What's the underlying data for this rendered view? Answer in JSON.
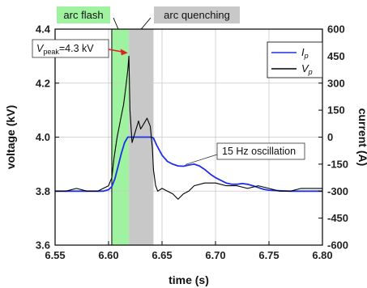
{
  "chart_data": {
    "type": "line",
    "xlabel": "time (s)",
    "ylabel_left": "voltage (kV)",
    "ylabel_right": "current (A)",
    "xlim": [
      6.55,
      6.8
    ],
    "ylim_left": [
      3.6,
      4.4
    ],
    "ylim_right": [
      -600,
      600
    ],
    "x_ticks": [
      "6.55",
      "6.60",
      "6.65",
      "6.70",
      "6.75",
      "6.80"
    ],
    "x_tick_values": [
      6.55,
      6.6,
      6.65,
      6.7,
      6.75,
      6.8
    ],
    "y_left_ticks": [
      "3.6",
      "3.8",
      "4.0",
      "4.2",
      "4.4"
    ],
    "y_left_tick_values": [
      3.6,
      3.8,
      4.0,
      4.2,
      4.4
    ],
    "y_right_ticks": [
      "-600",
      "-450",
      "-300",
      "-150",
      "0",
      "150",
      "300",
      "450",
      "600"
    ],
    "y_right_tick_values": [
      -600,
      -450,
      -300,
      -150,
      0,
      150,
      300,
      450,
      600
    ],
    "grid": true,
    "regions": [
      {
        "label": "arc flash",
        "x_start": 6.603,
        "x_end": 6.619,
        "color": "#9ff29f"
      },
      {
        "label": "arc quenching",
        "x_start": 6.619,
        "x_end": 6.642,
        "color": "#c8c8c8"
      }
    ],
    "vertical_lines": [
      6.603
    ],
    "annotations": [
      {
        "text_main": "V",
        "text_sub": "peak",
        "text_rest": "=4.3 kV",
        "x": 6.618,
        "y": 4.3,
        "arrow_color": "#e02020"
      },
      {
        "text": "15 Hz oscillation",
        "x": 6.667,
        "y": 3.96
      }
    ],
    "legend": {
      "placement": "top-right"
    },
    "series": [
      {
        "name": "I",
        "name_sub": "p",
        "axis": "right",
        "color": "#1f2fe8",
        "x": [
          6.55,
          6.58,
          6.595,
          6.6,
          6.603,
          6.606,
          6.609,
          6.612,
          6.615,
          6.618,
          6.62,
          6.625,
          6.63,
          6.635,
          6.64,
          6.642,
          6.645,
          6.65,
          6.655,
          6.66,
          6.665,
          6.67,
          6.675,
          6.68,
          6.685,
          6.69,
          6.695,
          6.7,
          6.705,
          6.71,
          6.715,
          6.72,
          6.725,
          6.73,
          6.735,
          6.74,
          6.745,
          6.75,
          6.76,
          6.77,
          6.78,
          6.79,
          6.8
        ],
        "y": [
          -300,
          -300,
          -300,
          -292,
          -275,
          -230,
          -160,
          -90,
          -30,
          0,
          0,
          0,
          0,
          0,
          0,
          -5,
          -45,
          -100,
          -135,
          -150,
          -160,
          -162,
          -155,
          -150,
          -160,
          -180,
          -205,
          -225,
          -240,
          -255,
          -262,
          -262,
          -258,
          -262,
          -270,
          -280,
          -290,
          -295,
          -298,
          -300,
          -300,
          -300,
          -300
        ]
      },
      {
        "name": "V",
        "name_sub": "p",
        "axis": "left",
        "color": "#000000",
        "x": [
          6.55,
          6.56,
          6.57,
          6.58,
          6.59,
          6.595,
          6.6,
          6.603,
          6.605,
          6.608,
          6.61,
          6.612,
          6.614,
          6.616,
          6.618,
          6.619,
          6.62,
          6.622,
          6.625,
          6.628,
          6.63,
          6.633,
          6.636,
          6.639,
          6.641,
          6.642,
          6.644,
          6.646,
          6.65,
          6.655,
          6.66,
          6.665,
          6.67,
          6.675,
          6.68,
          6.69,
          6.7,
          6.71,
          6.72,
          6.73,
          6.74,
          6.75,
          6.76,
          6.77,
          6.78,
          6.79,
          6.8
        ],
        "y": [
          3.8,
          3.8,
          3.81,
          3.8,
          3.8,
          3.81,
          3.82,
          3.85,
          3.92,
          4.0,
          4.04,
          4.08,
          4.12,
          4.18,
          4.25,
          4.3,
          4.1,
          3.98,
          4.02,
          4.06,
          4.03,
          4.05,
          4.07,
          4.04,
          3.96,
          3.88,
          3.82,
          3.8,
          3.81,
          3.8,
          3.79,
          3.77,
          3.79,
          3.8,
          3.82,
          3.83,
          3.83,
          3.82,
          3.82,
          3.81,
          3.82,
          3.81,
          3.8,
          3.8,
          3.81,
          3.81,
          3.81
        ]
      }
    ]
  }
}
